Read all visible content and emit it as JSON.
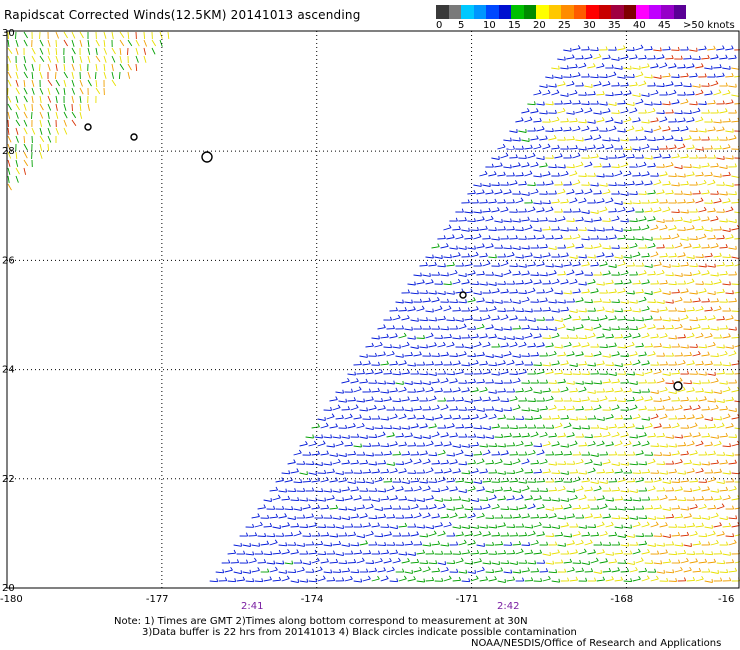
{
  "title": "Rapidscat Corrected Winds(12.5KM) 20141013 ascending",
  "legend": {
    "colors": [
      "#3a3a3a",
      "#7a7a7a",
      "#00c8ff",
      "#0096ff",
      "#0048ff",
      "#0010d0",
      "#00c000",
      "#008c00",
      "#ffff00",
      "#ffc800",
      "#ff8c00",
      "#ff5a00",
      "#ff0000",
      "#c80000",
      "#a00040",
      "#800000",
      "#ff00ff",
      "#c000ff",
      "#9600c8",
      "#5a0096"
    ],
    "labels": [
      "0",
      "5",
      "10",
      "15",
      "20",
      "25",
      "30",
      "35",
      "40",
      "45",
      ">50 knots"
    ]
  },
  "axes": {
    "x_ticks": [
      "-180",
      "-177",
      "-174",
      "-171",
      "-168",
      "-16"
    ],
    "y_ticks": [
      "30",
      "28",
      "26",
      "24",
      "22",
      "20"
    ],
    "pass_times": [
      "2:41",
      "2:42"
    ]
  },
  "notes": {
    "line1": "Note: 1) Times are GMT 2)Times along bottom correspond to measurement at 30N",
    "line2": "3)Data buffer is 22 hrs from 20141013 4) Black circles indicate possible contamination"
  },
  "credit": "NOAA/NESDIS/Office of Research and Applications",
  "colors": {
    "grid": "#000000",
    "barb_weak": "#0018d8",
    "barb_moderate": "#00a000",
    "barb_fresh": "#e8e000",
    "barb_strong": "#f0a000",
    "barb_gale": "#d83000",
    "time_label": "#7a1fa2"
  },
  "map_extent": {
    "lon_min": -180,
    "lon_max": -165.8,
    "lat_min": 20,
    "lat_max": 30.2
  }
}
